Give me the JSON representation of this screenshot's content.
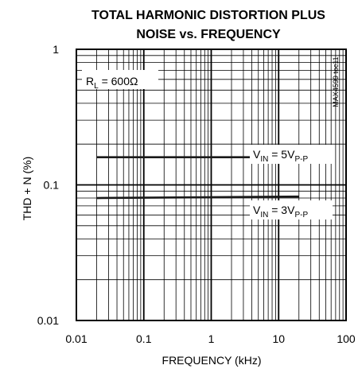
{
  "chart_data": {
    "type": "line",
    "title_lines": [
      "TOTAL HARMONIC DISTORTION PLUS",
      "NOISE vs. FREQUENCY"
    ],
    "xlabel": "FREQUENCY (kHz)",
    "ylabel": "THD + N (%)",
    "x_scale": "log",
    "y_scale": "log",
    "xlim": [
      0.01,
      100
    ],
    "ylim": [
      0.01,
      1
    ],
    "x_ticks": [
      {
        "value": 0.01,
        "label": "0.01"
      },
      {
        "value": 0.1,
        "label": "0.1"
      },
      {
        "value": 1,
        "label": "1"
      },
      {
        "value": 10,
        "label": "10"
      },
      {
        "value": 100,
        "label": "100"
      }
    ],
    "y_ticks": [
      {
        "value": 0.01,
        "label": "0.01"
      },
      {
        "value": 0.1,
        "label": "0.1"
      },
      {
        "value": 1,
        "label": "1"
      }
    ],
    "grid": true,
    "annotation": {
      "main": "R",
      "sub": "L",
      "rest": " = 600Ω"
    },
    "side_note": "MAX4599 toc11",
    "series": [
      {
        "name": "VIN = 5VP-P",
        "label_main": "V",
        "label_sub": "IN",
        "label_mid": " = 5V",
        "label_sub2": "P-P",
        "x": [
          0.02,
          20
        ],
        "y": [
          0.16,
          0.16
        ]
      },
      {
        "name": "VIN = 3VP-P",
        "label_main": "V",
        "label_sub": "IN",
        "label_mid": " = 3V",
        "label_sub2": "P-P",
        "x": [
          0.02,
          20
        ],
        "y": [
          0.08,
          0.082
        ]
      }
    ],
    "colors": {
      "line": "#1a1a1a",
      "grid": "#000000",
      "background": "#ffffff"
    }
  }
}
